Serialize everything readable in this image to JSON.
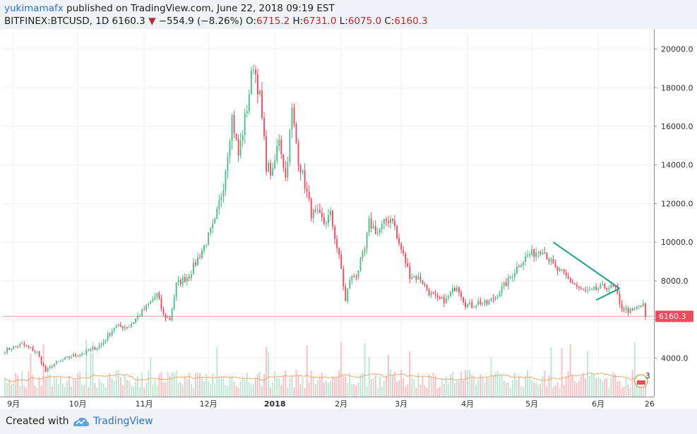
{
  "header": {
    "author": "yukimamafx",
    "published_text": "published on TradingView.com, June 22, 2018 09:19 EST",
    "symbol": "BITFINEX:BTCUSD, 1D",
    "last": "6160.3",
    "change": "−554.9 (−8.26%)",
    "o_label": "O:",
    "o_value": "6715.2",
    "h_label": "H:",
    "h_value": "6731.0",
    "l_label": "L:",
    "l_value": "6075.0",
    "c_label": "C:",
    "c_value": "6160.3"
  },
  "footer": {
    "created_with": "Created with",
    "brand": "TradingView"
  },
  "colors": {
    "up": "#53b987",
    "down": "#eb4d5c",
    "volume_up": "#bfe6d3",
    "volume_down": "#f7bfc4",
    "ma": "#f5a66a",
    "trendline": "#1e9e86",
    "price_line": "#eb4d5c"
  },
  "chart_data": {
    "type": "candlestick",
    "x_tick_labels": [
      "9月",
      "10月",
      "11月",
      "12月",
      "2018",
      "2月",
      "3月",
      "4月",
      "5月",
      "6月",
      "26"
    ],
    "x_tick_days": [
      1,
      31,
      62,
      92,
      123,
      154,
      182,
      213,
      243,
      274,
      298
    ],
    "y_ticks": [
      4000,
      6000,
      8000,
      10000,
      12000,
      14000,
      16000,
      18000,
      20000
    ],
    "y_tick_labels": [
      "4000.0",
      "6000.0",
      "8000.0",
      "10000.0",
      "12000.0",
      "14000.0",
      "16000.0",
      "18000.0",
      "20000.0"
    ],
    "ylim": [
      2000,
      20900
    ],
    "xlim_days": [
      -4,
      300
    ],
    "last_price": 6160.3,
    "last_price_label": "6160.3",
    "badge_label": "3",
    "close_anchors": [
      [
        -3,
        4400
      ],
      [
        5,
        4700
      ],
      [
        12,
        4300
      ],
      [
        16,
        3300
      ],
      [
        20,
        3700
      ],
      [
        28,
        4100
      ],
      [
        35,
        4300
      ],
      [
        42,
        4700
      ],
      [
        48,
        5600
      ],
      [
        55,
        5650
      ],
      [
        62,
        6500
      ],
      [
        68,
        7300
      ],
      [
        71,
        6200
      ],
      [
        74,
        6000
      ],
      [
        77,
        7800
      ],
      [
        83,
        8300
      ],
      [
        90,
        9800
      ],
      [
        95,
        11000
      ],
      [
        99,
        13000
      ],
      [
        103,
        16500
      ],
      [
        106,
        14500
      ],
      [
        110,
        17000
      ],
      [
        113,
        19300
      ],
      [
        116,
        17500
      ],
      [
        119,
        14000
      ],
      [
        122,
        13500
      ],
      [
        125,
        15500
      ],
      [
        128,
        13300
      ],
      [
        131,
        16800
      ],
      [
        134,
        14300
      ],
      [
        137,
        13000
      ],
      [
        140,
        11500
      ],
      [
        143,
        11400
      ],
      [
        146,
        11000
      ],
      [
        149,
        11400
      ],
      [
        151,
        10300
      ],
      [
        154,
        8600
      ],
      [
        156,
        6900
      ],
      [
        158,
        8100
      ],
      [
        161,
        8300
      ],
      [
        165,
        9600
      ],
      [
        167,
        11000
      ],
      [
        171,
        10500
      ],
      [
        175,
        11100
      ],
      [
        178,
        11300
      ],
      [
        180,
        10200
      ],
      [
        183,
        9300
      ],
      [
        186,
        8300
      ],
      [
        191,
        8100
      ],
      [
        195,
        7400
      ],
      [
        199,
        7000
      ],
      [
        203,
        7000
      ],
      [
        208,
        7800
      ],
      [
        212,
        6800
      ],
      [
        215,
        6700
      ],
      [
        218,
        6900
      ],
      [
        222,
        6800
      ],
      [
        226,
        7200
      ],
      [
        232,
        8000
      ],
      [
        236,
        8700
      ],
      [
        238,
        9000
      ],
      [
        241,
        9300
      ],
      [
        245,
        9500
      ],
      [
        248,
        9700
      ],
      [
        250,
        9300
      ],
      [
        254,
        8600
      ],
      [
        258,
        8300
      ],
      [
        262,
        7900
      ],
      [
        266,
        7500
      ],
      [
        270,
        7400
      ],
      [
        274,
        7600
      ],
      [
        278,
        7700
      ],
      [
        282,
        7600
      ],
      [
        284,
        6700
      ],
      [
        287,
        6500
      ],
      [
        290,
        6400
      ],
      [
        293,
        6700
      ],
      [
        295,
        6715
      ],
      [
        296,
        6160.3
      ]
    ],
    "trendlines": [
      {
        "from": [
          253,
          10000
        ],
        "to": [
          284,
          7600
        ]
      },
      {
        "from": [
          273,
          7000
        ],
        "to": [
          284,
          7600
        ]
      }
    ]
  }
}
